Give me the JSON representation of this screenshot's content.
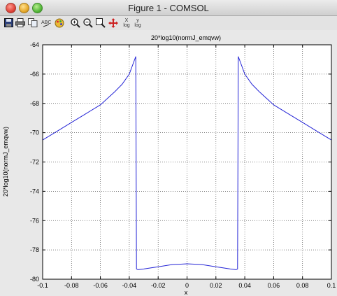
{
  "window": {
    "title": "Figure 1 - COMSOL"
  },
  "toolbar": {
    "icons": [
      "save-icon",
      "print-icon",
      "copy-icon",
      "text-icon",
      "color-icon",
      "zoom-in-icon",
      "zoom-out-icon",
      "zoom-extents-icon",
      "pan-icon"
    ],
    "xlog_label_top": "X",
    "xlog_label_bottom": "log",
    "ylog_label_top": "y",
    "ylog_label_bottom": "log"
  },
  "chart_data": {
    "type": "line",
    "title": "20*log10(normJ_emqvw)",
    "xlabel": "x",
    "ylabel": "20*log10(normJ_emqvw)",
    "xlim": [
      -0.1,
      0.1
    ],
    "ylim": [
      -80,
      -64
    ],
    "xticks": [
      -0.1,
      -0.08,
      -0.06,
      -0.04,
      -0.02,
      0,
      0.02,
      0.04,
      0.06,
      0.08,
      0.1
    ],
    "xtick_labels": [
      "-0.1",
      "-0.08",
      "-0.06",
      "-0.04",
      "-0.02",
      "0",
      "0.02",
      "0.04",
      "0.06",
      "0.08",
      "0.1"
    ],
    "yticks": [
      -80,
      -78,
      -76,
      -74,
      -72,
      -70,
      -68,
      -66,
      -64
    ],
    "ytick_labels": [
      "-80",
      "-78",
      "-76",
      "-74",
      "-72",
      "-70",
      "-68",
      "-66",
      "-64"
    ],
    "grid": "dotted",
    "line_color": "#2424d6",
    "series": [
      {
        "x": [
          -0.1,
          -0.09,
          -0.08,
          -0.07,
          -0.06,
          -0.05,
          -0.045,
          -0.04,
          -0.0355,
          -0.035,
          -0.034,
          -0.03,
          -0.02,
          -0.01,
          0,
          0.01,
          0.02,
          0.03,
          0.034,
          0.035,
          0.0355,
          0.04,
          0.045,
          0.05,
          0.06,
          0.07,
          0.08,
          0.09,
          0.1
        ],
        "y": [
          -70.5,
          -69.9,
          -69.3,
          -68.7,
          -68.1,
          -67.2,
          -66.7,
          -66.0,
          -64.8,
          -79.3,
          -79.35,
          -79.3,
          -79.15,
          -79.0,
          -78.95,
          -79.0,
          -79.15,
          -79.3,
          -79.35,
          -79.3,
          -64.8,
          -66.0,
          -66.7,
          -67.2,
          -68.1,
          -68.7,
          -69.3,
          -69.9,
          -70.5
        ]
      }
    ]
  }
}
